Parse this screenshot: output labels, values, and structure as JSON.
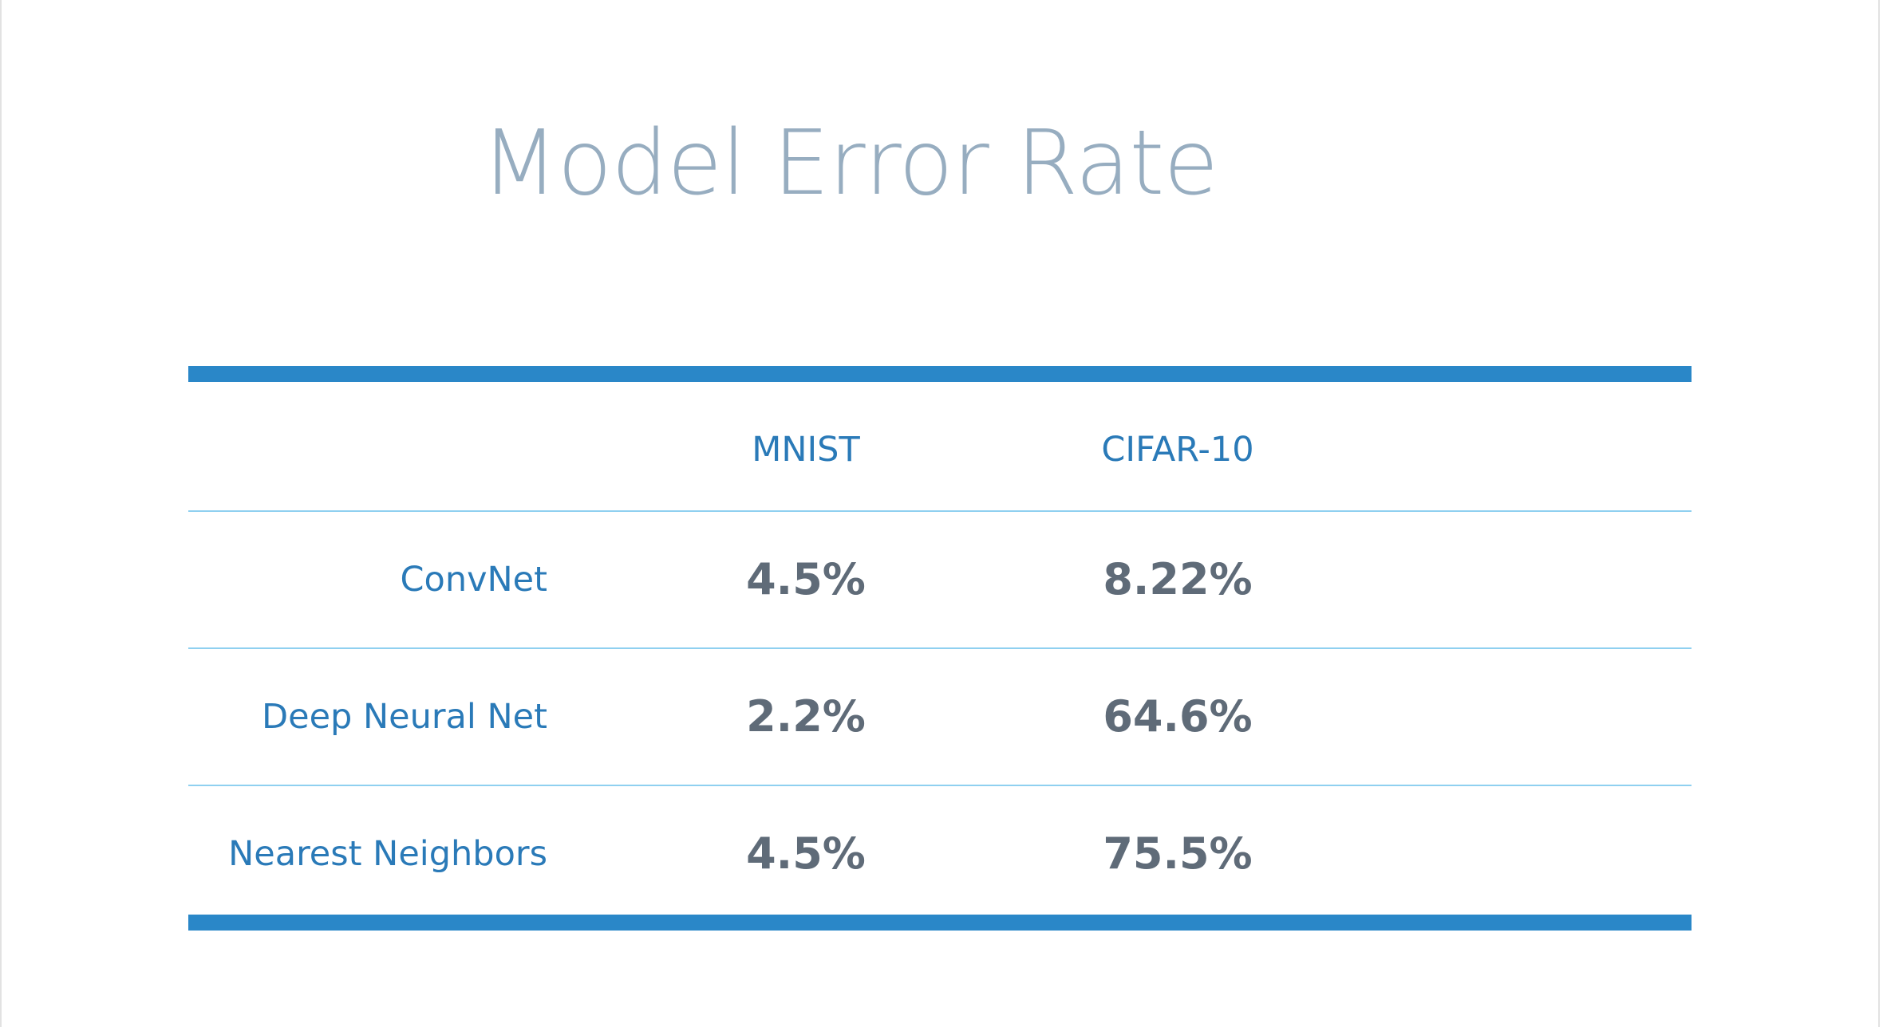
{
  "colors": {
    "title": "#97adc0",
    "accent": "#2a87c8",
    "thin_rule": "#8fd0f0",
    "label": "#2a7ab8",
    "value": "#5f6b78",
    "frame": "#e2e2e2"
  },
  "chart_data": {
    "type": "table",
    "title": "Model Error Rate",
    "columns": [
      "",
      "MNIST",
      "CIFAR-10"
    ],
    "rows": [
      {
        "label": "ConvNet",
        "values": [
          "4.5%",
          "8.22%"
        ]
      },
      {
        "label": "Deep Neural Net",
        "values": [
          "2.2%",
          "64.6%"
        ]
      },
      {
        "label": "Nearest Neighbors",
        "values": [
          "4.5%",
          "75.5%"
        ]
      }
    ]
  }
}
